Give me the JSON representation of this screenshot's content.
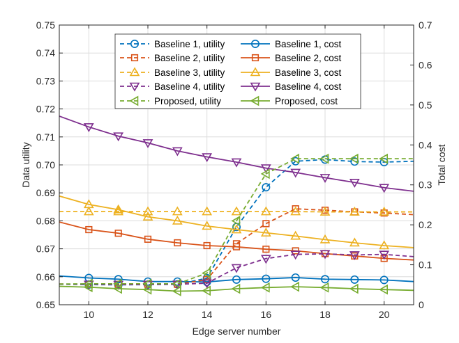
{
  "chart_data": {
    "type": "line",
    "title": "",
    "xlabel": "Edge server number",
    "ylabel_left": "Data utility",
    "ylabel_right": "Total cost",
    "xlim": [
      9,
      21
    ],
    "ylim_left": [
      0.65,
      0.75
    ],
    "ylim_right": [
      0,
      0.7
    ],
    "x_ticks": [
      10,
      12,
      14,
      16,
      18,
      20
    ],
    "y_ticks_left": [
      0.65,
      0.66,
      0.67,
      0.68,
      0.69,
      0.7,
      0.71,
      0.72,
      0.73,
      0.74,
      0.75
    ],
    "y_ticks_right": [
      0,
      0.1,
      0.2,
      0.3,
      0.4,
      0.5,
      0.6,
      0.7
    ],
    "grid": true,
    "legend_position": "top-center",
    "x": [
      9,
      10,
      11,
      12,
      13,
      14,
      15,
      16,
      17,
      18,
      19,
      20,
      21
    ],
    "series": [
      {
        "name": "Baseline 1, utility",
        "axis": "left",
        "color": "#0072BD",
        "dash": true,
        "marker": "circle",
        "values": [
          0.6573,
          0.6572,
          0.6571,
          0.6572,
          0.6573,
          0.6595,
          0.6778,
          0.692,
          0.7013,
          0.7019,
          0.7012,
          0.701,
          0.7013
        ]
      },
      {
        "name": "Baseline 1, cost",
        "axis": "right",
        "color": "#0072BD",
        "dash": false,
        "marker": "circle",
        "values": [
          0.072,
          0.067,
          0.064,
          0.058,
          0.058,
          0.057,
          0.063,
          0.065,
          0.068,
          0.064,
          0.063,
          0.062,
          0.058
        ]
      },
      {
        "name": "Baseline 2, utility",
        "axis": "left",
        "color": "#D95319",
        "dash": true,
        "marker": "square",
        "values": [
          0.6574,
          0.6573,
          0.6573,
          0.6573,
          0.6573,
          0.659,
          0.6718,
          0.679,
          0.6843,
          0.6838,
          0.6832,
          0.6828,
          0.6822
        ]
      },
      {
        "name": "Baseline 2, cost",
        "axis": "right",
        "color": "#D95319",
        "dash": false,
        "marker": "square",
        "values": [
          0.207,
          0.188,
          0.179,
          0.164,
          0.155,
          0.148,
          0.145,
          0.139,
          0.135,
          0.128,
          0.122,
          0.116,
          0.112
        ]
      },
      {
        "name": "Baseline 3, utility",
        "axis": "left",
        "color": "#EDB120",
        "dash": true,
        "marker": "triangle-up",
        "values": [
          0.6833,
          0.6833,
          0.6833,
          0.6833,
          0.6833,
          0.6833,
          0.6833,
          0.6833,
          0.6833,
          0.6832,
          0.6832,
          0.6832,
          0.6832
        ]
      },
      {
        "name": "Baseline 3, cost",
        "axis": "right",
        "color": "#EDB120",
        "dash": false,
        "marker": "triangle-up",
        "values": [
          0.272,
          0.251,
          0.238,
          0.22,
          0.21,
          0.197,
          0.188,
          0.18,
          0.172,
          0.163,
          0.155,
          0.148,
          0.143
        ]
      },
      {
        "name": "Baseline 4, utility",
        "axis": "left",
        "color": "#7E2F8E",
        "dash": true,
        "marker": "triangle-down",
        "values": [
          0.6574,
          0.6573,
          0.6572,
          0.6572,
          0.6573,
          0.6577,
          0.6632,
          0.6665,
          0.668,
          0.6682,
          0.6678,
          0.668,
          0.6672
        ]
      },
      {
        "name": "Baseline 4, cost",
        "axis": "right",
        "color": "#7E2F8E",
        "dash": false,
        "marker": "triangle-down",
        "values": [
          0.472,
          0.445,
          0.422,
          0.405,
          0.385,
          0.37,
          0.357,
          0.342,
          0.331,
          0.318,
          0.306,
          0.293,
          0.284
        ]
      },
      {
        "name": "Proposed, utility",
        "axis": "left",
        "color": "#77AC30",
        "dash": true,
        "marker": "triangle-left",
        "values": [
          0.6574,
          0.6575,
          0.6575,
          0.6575,
          0.6575,
          0.6613,
          0.68,
          0.6968,
          0.7022,
          0.7022,
          0.7022,
          0.7022,
          0.7022
        ]
      },
      {
        "name": "Proposed, cost",
        "axis": "right",
        "color": "#77AC30",
        "dash": false,
        "marker": "triangle-left",
        "values": [
          0.046,
          0.044,
          0.04,
          0.038,
          0.034,
          0.035,
          0.04,
          0.043,
          0.045,
          0.043,
          0.04,
          0.038,
          0.036
        ]
      }
    ]
  }
}
